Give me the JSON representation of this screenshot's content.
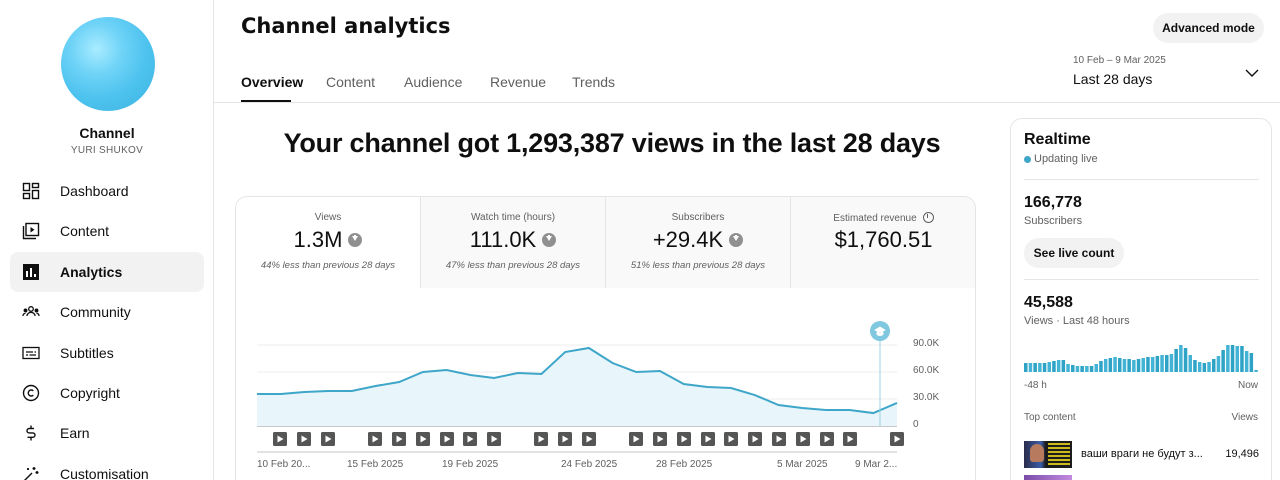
{
  "channel": {
    "title": "Channel",
    "name": "YURI SHUKOV"
  },
  "sidebar": {
    "items": [
      {
        "label": "Dashboard",
        "icon": "dashboard-icon",
        "active": false
      },
      {
        "label": "Content",
        "icon": "content-icon",
        "active": false
      },
      {
        "label": "Analytics",
        "icon": "analytics-icon",
        "active": true
      },
      {
        "label": "Community",
        "icon": "community-icon",
        "active": false
      },
      {
        "label": "Subtitles",
        "icon": "subtitles-icon",
        "active": false
      },
      {
        "label": "Copyright",
        "icon": "copyright-icon",
        "active": false
      },
      {
        "label": "Earn",
        "icon": "dollar-icon",
        "active": false
      },
      {
        "label": "Customisation",
        "icon": "magic-wand-icon",
        "active": false
      }
    ]
  },
  "header": {
    "title": "Channel analytics",
    "advanced_mode_label": "Advanced mode",
    "tabs": [
      {
        "label": "Overview",
        "active": true
      },
      {
        "label": "Content",
        "active": false
      },
      {
        "label": "Audience",
        "active": false
      },
      {
        "label": "Revenue",
        "active": false
      },
      {
        "label": "Trends",
        "active": false
      }
    ],
    "date_range": "10 Feb – 9 Mar 2025",
    "date_preset": "Last 28 days"
  },
  "main": {
    "headline": "Your channel got 1,293,387 views in the last 28 days",
    "metrics": [
      {
        "label": "Views",
        "value": "1.3M",
        "trend": "down",
        "compare": "44% less than previous 28 days"
      },
      {
        "label": "Watch time (hours)",
        "value": "111.0K",
        "trend": "down",
        "compare": "47% less than previous 28 days"
      },
      {
        "label": "Subscribers",
        "value": "+29.4K",
        "trend": "down",
        "compare": "51% less than previous 28 days"
      },
      {
        "label": "Estimated revenue",
        "value": "$1,760.51",
        "trend": "none",
        "compare": ""
      }
    ]
  },
  "chart_data": {
    "type": "area",
    "title": "Views",
    "xlabel": "",
    "ylabel": "Views",
    "ylim": [
      0,
      90000
    ],
    "yticks": [
      "0",
      "30.0K",
      "60.0K",
      "90.0K"
    ],
    "xtick_labels": [
      "10 Feb 20...",
      "15 Feb 2025",
      "19 Feb 2025",
      "24 Feb 2025",
      "28 Feb 2025",
      "5 Mar 2025",
      "9 Mar 2..."
    ],
    "grid": true,
    "color": "#3ea6c8",
    "values": [
      35600,
      35600,
      37800,
      38900,
      38900,
      44400,
      48900,
      60000,
      62200,
      56700,
      53300,
      58900,
      57800,
      82200,
      86700,
      70000,
      60000,
      61100,
      46700,
      43300,
      42200,
      34400,
      23300,
      20000,
      17800,
      17800,
      14400,
      25600
    ],
    "video_markers": 23
  },
  "realtime": {
    "title": "Realtime",
    "status": "Updating live",
    "subscribers": "166,778",
    "subscribers_label": "Subscribers",
    "see_live_label": "See live count",
    "views": "45,588",
    "views_label": "Views · Last 48 hours",
    "bars": [
      9,
      9,
      9,
      9,
      9,
      10,
      11,
      12,
      12,
      8,
      7,
      6,
      6,
      6,
      6,
      8,
      11,
      13,
      14,
      15,
      14,
      13,
      13,
      12,
      13,
      14,
      15,
      15,
      16,
      17,
      17,
      18,
      23,
      27,
      24,
      17,
      12,
      10,
      9,
      10,
      13,
      16,
      22,
      27,
      27,
      26,
      26,
      21,
      19,
      2
    ],
    "axis_start": "-48 h",
    "axis_end": "Now",
    "top_content_label": "Top content",
    "top_content_views_label": "Views",
    "top_content": [
      {
        "title": "ваши враги не будут з...",
        "views": "19,496"
      }
    ]
  }
}
